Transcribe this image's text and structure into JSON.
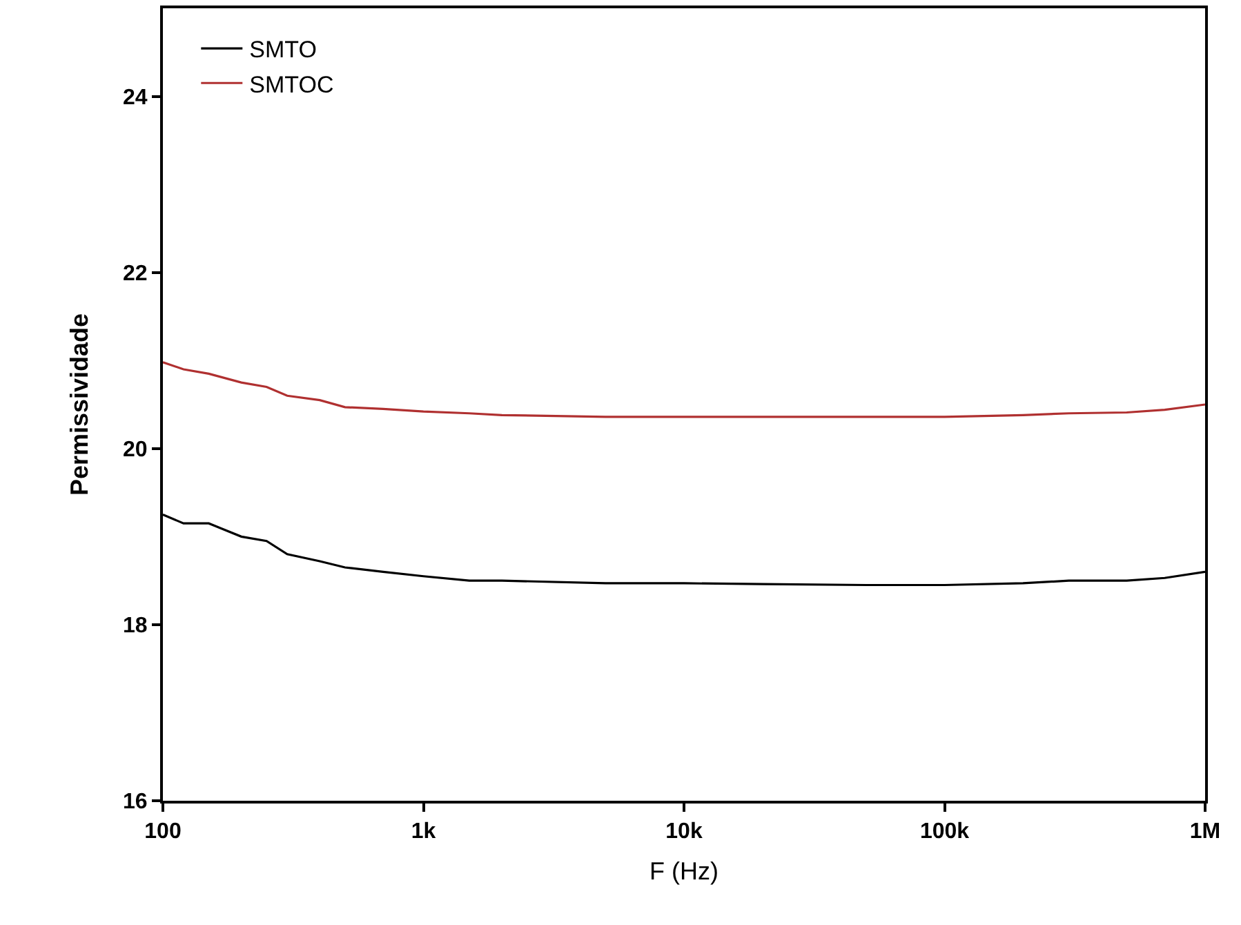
{
  "chart_data": {
    "type": "line",
    "xlabel": "F (Hz)",
    "ylabel": "Permissividade",
    "log": "x",
    "grid": false,
    "legend": "top left",
    "line_style": "solid",
    "marker": "none",
    "xlim": [
      100,
      1000000
    ],
    "xticks": [
      100,
      {
        "value": 1000,
        "label": "1k"
      },
      {
        "value": 10000,
        "label": "10k"
      },
      {
        "value": 100000,
        "label": "100k"
      },
      {
        "value": 1000000,
        "label": "1M"
      }
    ],
    "ylim": [
      16,
      25
    ],
    "yticks": [
      16,
      18,
      20,
      22,
      24
    ],
    "x": [
      100,
      120,
      150,
      200,
      250,
      300,
      400,
      500,
      700,
      1000,
      1500,
      2000,
      5000,
      10000,
      20000,
      50000,
      100000,
      200000,
      300000,
      500000,
      700000,
      1000000
    ],
    "series": [
      {
        "name": "SMTO",
        "color": "#000000",
        "values": [
          19.25,
          19.15,
          19.15,
          19.0,
          18.95,
          18.8,
          18.72,
          18.65,
          18.6,
          18.55,
          18.5,
          18.5,
          18.47,
          18.47,
          18.46,
          18.45,
          18.45,
          18.47,
          18.5,
          18.5,
          18.53,
          18.6
        ]
      },
      {
        "name": "SMTOC",
        "color": "#b03030",
        "values": [
          20.98,
          20.9,
          20.85,
          20.75,
          20.7,
          20.6,
          20.55,
          20.47,
          20.45,
          20.42,
          20.4,
          20.38,
          20.36,
          20.36,
          20.36,
          20.36,
          20.36,
          20.38,
          20.4,
          20.41,
          20.44,
          20.5
        ]
      }
    ]
  }
}
